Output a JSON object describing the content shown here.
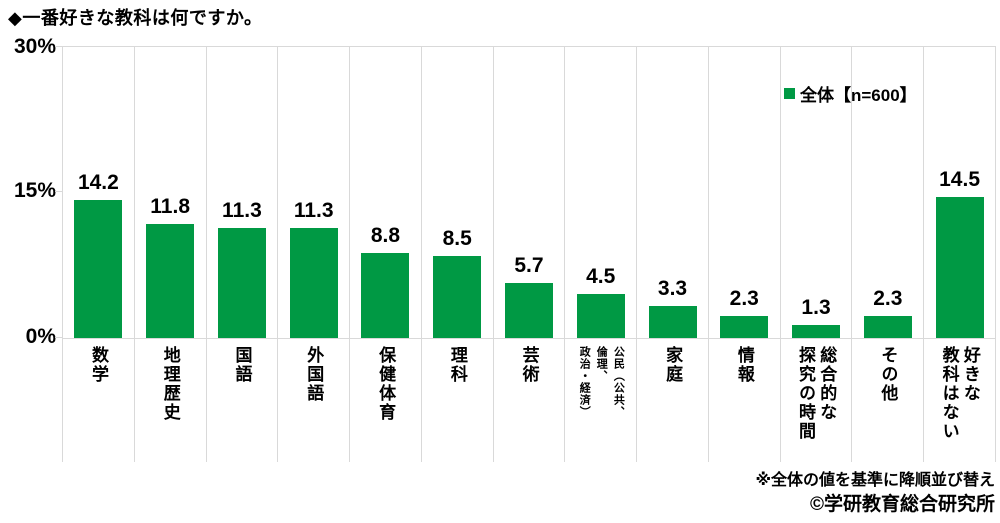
{
  "title": "◆一番好きな教科は何ですか。",
  "legend": {
    "label": "全体【n=600】",
    "color": "#009944"
  },
  "y_axis": {
    "labels": [
      "30%",
      "15%",
      "0%"
    ]
  },
  "notes": {
    "sort_note": "※全体の値を基準に降順並び替え",
    "copyright": "©学研教育総合研究所"
  },
  "chart_data": {
    "type": "bar",
    "title": "一番好きな教科は何ですか。",
    "series_name": "全体【n=600】",
    "ylabel": "%",
    "ylim": [
      0,
      30
    ],
    "y_ticks": [
      "0%",
      "15%",
      "30%"
    ],
    "bar_color": "#009944",
    "grid": "vertical category dividers, light gray",
    "legend_position": "top-right",
    "categories": [
      "数学",
      "地理歴史",
      "国語",
      "外国語",
      "保健体育",
      "理科",
      "芸術",
      "公民（公共、倫理、政治・経済）",
      "家庭",
      "情報",
      "総合的な探究の時間",
      "その他",
      "好きな教科はない"
    ],
    "values": [
      14.2,
      11.8,
      11.3,
      11.3,
      8.8,
      8.5,
      5.7,
      4.5,
      3.3,
      2.3,
      1.3,
      2.3,
      14.5
    ],
    "value_labels": [
      "14.2",
      "11.8",
      "11.3",
      "11.3",
      "8.8",
      "8.5",
      "5.7",
      "4.5",
      "3.3",
      "2.3",
      "1.3",
      "2.3",
      "14.5"
    ],
    "category_display": [
      "数学",
      "地理歴史",
      "国語",
      "外国語",
      "保健体育",
      "理科",
      "芸術",
      "公民（公共、\n倫理、\n政治・経済）",
      "家庭",
      "情報",
      "総合的な\n探究の時間",
      "その他",
      "好きな\n教科はない"
    ],
    "small_label_indices": [
      7
    ]
  }
}
